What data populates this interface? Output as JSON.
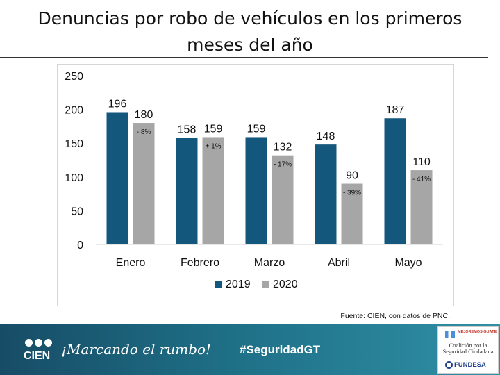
{
  "title": "Denuncias por robo de vehículos en los primeros meses del año",
  "chart_data": {
    "type": "bar",
    "categories": [
      "Enero",
      "Febrero",
      "Marzo",
      "Abril",
      "Mayo"
    ],
    "series": [
      {
        "name": "2019",
        "color": "#14577c",
        "values": [
          196,
          158,
          159,
          148,
          187
        ]
      },
      {
        "name": "2020",
        "color": "#a6a6a6",
        "values": [
          180,
          159,
          132,
          90,
          110
        ]
      }
    ],
    "changes": [
      "- 8%",
      "+ 1%",
      "- 17%",
      "- 39%",
      "- 41%"
    ],
    "ylim": [
      0,
      250
    ],
    "yticks": [
      0,
      50,
      100,
      150,
      200,
      250
    ],
    "legend": "bottom",
    "xlabel": "",
    "ylabel": ""
  },
  "source": "Fuente: CIEN, con datos de PNC.",
  "footer": {
    "logo_text": "CIEN",
    "slogan": "¡Marcando el rumbo!",
    "hashtag": "#SeguridadGT",
    "partner_tag": "MEJOREMOS GUATE",
    "coalition_text": "Coalición por la Seguridad Ciudadana",
    "fundesa_text": "FUNDESA"
  }
}
